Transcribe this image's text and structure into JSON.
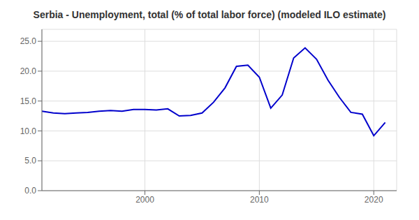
{
  "chart_data": {
    "type": "line",
    "title": "Serbia - Unemployment, total (% of total labor force) (modeled ILO estimate)",
    "x": [
      1991,
      1992,
      1993,
      1994,
      1995,
      1996,
      1997,
      1998,
      1999,
      2000,
      2001,
      2002,
      2003,
      2004,
      2005,
      2006,
      2007,
      2008,
      2009,
      2010,
      2011,
      2012,
      2013,
      2014,
      2015,
      2016,
      2017,
      2018,
      2019,
      2020,
      2021
    ],
    "values": [
      13.3,
      13.0,
      12.9,
      13.0,
      13.1,
      13.3,
      13.4,
      13.3,
      13.6,
      13.6,
      13.5,
      13.7,
      12.5,
      12.6,
      13.0,
      14.8,
      17.2,
      20.8,
      21.0,
      19.0,
      13.8,
      16.0,
      22.2,
      23.9,
      22.0,
      18.5,
      15.6,
      13.1,
      12.8,
      9.2,
      11.4
    ],
    "color": "#0000cc",
    "xlim": [
      1991,
      2022
    ],
    "xticks": [
      2000,
      2010,
      2020
    ],
    "ylim": [
      0,
      27
    ],
    "yticks": [
      {
        "value": 0,
        "label": "0.0"
      },
      {
        "value": 5,
        "label": "5.0"
      },
      {
        "value": 10,
        "label": "10.0"
      },
      {
        "value": 15,
        "label": "15.0"
      },
      {
        "value": 20,
        "label": "20.0"
      },
      {
        "value": 25,
        "label": "25.0"
      }
    ],
    "grid": true
  }
}
